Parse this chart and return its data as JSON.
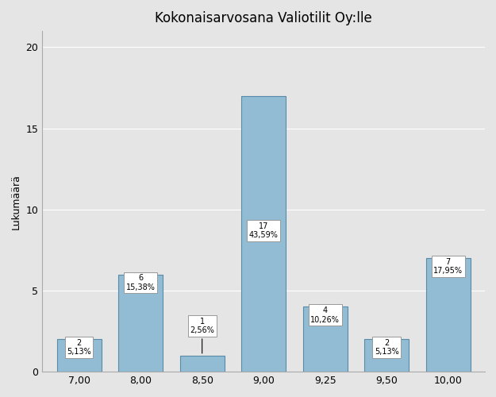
{
  "title": "Kokonaisarvosana Valiotilit Oy:lle",
  "ylabel": "Lukumäärä",
  "categories": [
    "7,00",
    "8,00",
    "8,50",
    "9,00",
    "9,25",
    "9,50",
    "10,00"
  ],
  "x_positions": [
    0,
    1,
    2,
    3,
    4,
    5,
    6
  ],
  "x_labels_real": [
    "7,00",
    "8,00",
    "8,50",
    "9,00",
    "9,25",
    "9,50",
    "10,00"
  ],
  "values": [
    2,
    6,
    1,
    17,
    4,
    2,
    7
  ],
  "percentages": [
    "5,13%",
    "15,38%",
    "2,56%",
    "43,59%",
    "10,26%",
    "5,13%",
    "17,95%"
  ],
  "bar_color": "#91bcd4",
  "bar_edge_color": "#5a8aaa",
  "bar_width": 0.72,
  "ylim": [
    0,
    21
  ],
  "yticks": [
    0,
    5,
    10,
    15,
    20
  ],
  "background_color": "#e5e5e5",
  "plot_background_color": "#e5e5e5",
  "title_fontsize": 12,
  "axis_label_fontsize": 9,
  "tick_fontsize": 9,
  "annotation_fontsize": 7,
  "label_box_color": "white",
  "label_box_edge": "#999999"
}
